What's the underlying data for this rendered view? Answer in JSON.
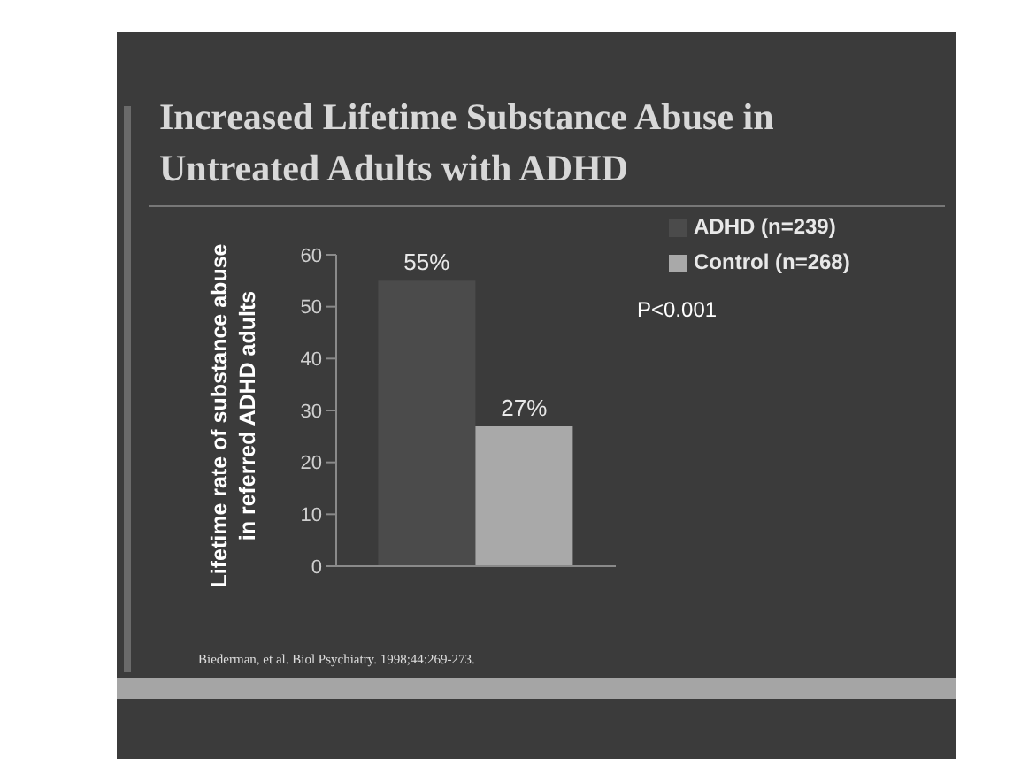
{
  "chart_data": {
    "type": "bar",
    "title": "Increased Lifetime Substance Abuse in Untreated Adults with ADHD",
    "ylabel": "Lifetime rate of substance abuse in referred ADHD adults",
    "categories": [
      null
    ],
    "series": [
      {
        "name": "ADHD (n=239)",
        "color": "#4b4b4b",
        "values": [
          55
        ],
        "value_labels": [
          "55%"
        ]
      },
      {
        "name": "Control (n=268)",
        "color": "#a9a9a9",
        "values": [
          27
        ],
        "value_labels": [
          "27%"
        ]
      }
    ],
    "ylim": [
      0,
      60
    ],
    "yticks": [
      0,
      10,
      20,
      30,
      40,
      50,
      60
    ],
    "grid": false,
    "legend": "top right",
    "annotations": [
      "P<0.001",
      "Biederman, et al. Biol Psychiatry. 1998;44:269-273."
    ]
  }
}
